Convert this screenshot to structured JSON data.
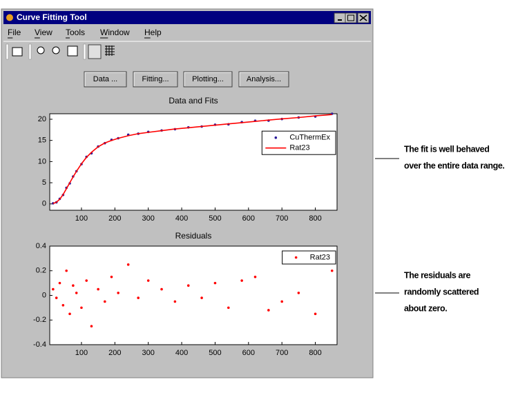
{
  "window": {
    "title": "Curve Fitting Tool",
    "menus": [
      "File",
      "View",
      "Tools",
      "Window",
      "Help"
    ],
    "buttons": [
      "Data ...",
      "Fitting...",
      "Plotting...",
      "Analysis..."
    ]
  },
  "chart_data": [
    {
      "type": "scatter",
      "title": "Data and Fits",
      "x": [
        15,
        25,
        35,
        45,
        55,
        65,
        75,
        85,
        100,
        115,
        130,
        150,
        170,
        190,
        210,
        240,
        270,
        300,
        340,
        380,
        420,
        460,
        500,
        540,
        580,
        620,
        660,
        700,
        750,
        800,
        850
      ],
      "series": [
        {
          "name": "CuThermEx",
          "type": "scatter",
          "color": "#2a1a9a",
          "values": [
            0.15,
            0.38,
            1.2,
            2.12,
            3.8,
            4.85,
            6.48,
            7.72,
            9.4,
            11.12,
            11.95,
            13.55,
            14.35,
            15.15,
            15.52,
            16.35,
            16.58,
            17.02,
            17.35,
            17.65,
            18.08,
            18.28,
            18.7,
            18.8,
            19.32,
            19.65,
            19.68,
            20.05,
            20.42,
            20.65,
            21.3
          ]
        },
        {
          "name": "Rat23",
          "type": "line",
          "color": "#ff0000",
          "values": [
            0.1,
            0.4,
            1.1,
            2.2,
            3.6,
            5.0,
            6.4,
            7.7,
            9.5,
            11.0,
            12.2,
            13.5,
            14.4,
            15.0,
            15.5,
            16.1,
            16.6,
            16.9,
            17.3,
            17.7,
            18.0,
            18.3,
            18.6,
            18.9,
            19.2,
            19.5,
            19.8,
            20.1,
            20.4,
            20.8,
            21.1
          ]
        }
      ],
      "xlim": [
        5,
        865
      ],
      "ylim": [
        -1.5,
        21.3
      ],
      "xticks": [
        100,
        200,
        300,
        400,
        500,
        600,
        700,
        800
      ],
      "yticks": [
        0,
        5,
        10,
        15,
        20
      ],
      "legend": "right"
    },
    {
      "type": "scatter",
      "title": "Residuals",
      "x": [
        15,
        25,
        35,
        45,
        55,
        65,
        75,
        85,
        100,
        115,
        130,
        150,
        170,
        190,
        210,
        240,
        270,
        300,
        340,
        380,
        420,
        460,
        500,
        540,
        580,
        620,
        660,
        700,
        750,
        800,
        850
      ],
      "series": [
        {
          "name": "Rat23",
          "type": "scatter",
          "color": "#ff0000",
          "values": [
            0.05,
            -0.02,
            0.1,
            -0.08,
            0.2,
            -0.15,
            0.08,
            0.02,
            -0.1,
            0.12,
            -0.25,
            0.05,
            -0.05,
            0.15,
            0.02,
            0.25,
            -0.02,
            0.12,
            0.05,
            -0.05,
            0.08,
            -0.02,
            0.1,
            -0.1,
            0.12,
            0.15,
            -0.12,
            -0.05,
            0.02,
            -0.15,
            0.2
          ]
        }
      ],
      "xlim": [
        5,
        865
      ],
      "ylim": [
        -0.4,
        0.4
      ],
      "xticks": [
        100,
        200,
        300,
        400,
        500,
        600,
        700,
        800
      ],
      "yticks": [
        -0.4,
        -0.2,
        0,
        0.2,
        0.4
      ],
      "legend": "upper right"
    }
  ],
  "annotations": [
    [
      "The fit is well behaved",
      "over the entire data range."
    ],
    [
      "The residuals are",
      "randomly scattered",
      "about zero."
    ]
  ]
}
